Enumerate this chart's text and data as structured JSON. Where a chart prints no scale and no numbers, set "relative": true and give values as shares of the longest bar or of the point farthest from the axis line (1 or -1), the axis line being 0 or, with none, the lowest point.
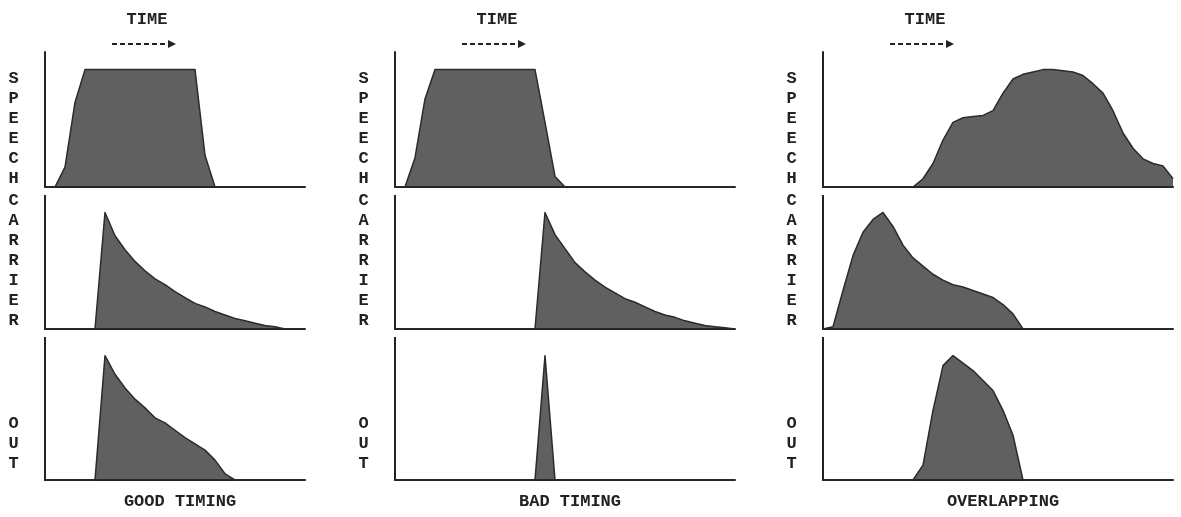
{
  "chart_data": [
    {
      "type": "area",
      "relative": true,
      "title": "TIME",
      "ylabel": "SPEECH",
      "color": "#2b2b2b",
      "categories": [
        null,
        null,
        null,
        null,
        null,
        null,
        null,
        null,
        null,
        null,
        null,
        null,
        null,
        null,
        null,
        null,
        null,
        null,
        null,
        null,
        null,
        null,
        null,
        null,
        null,
        null,
        null
      ],
      "values": [
        0,
        0,
        0.17,
        0.72,
        1,
        1,
        1,
        1,
        1,
        1,
        1,
        1,
        1,
        1,
        1,
        1,
        0.27,
        0,
        0,
        0,
        0,
        0,
        0,
        0,
        0,
        0,
        0
      ]
    },
    {
      "type": "area",
      "relative": true,
      "title": "TIME",
      "ylabel": "SPEECH",
      "color": "#2b2b2b",
      "categories": [
        null,
        null,
        null,
        null,
        null,
        null,
        null,
        null,
        null,
        null,
        null,
        null,
        null,
        null,
        null,
        null,
        null,
        null,
        null,
        null,
        null,
        null,
        null,
        null,
        null,
        null,
        null,
        null,
        null,
        null,
        null,
        null,
        null,
        null,
        null
      ],
      "values": [
        0,
        0,
        0.25,
        0.75,
        1,
        1,
        1,
        1,
        1,
        1,
        1,
        1,
        1,
        1,
        1,
        0.55,
        0.09,
        0,
        0,
        0,
        0,
        0,
        0,
        0,
        0,
        0,
        0,
        0,
        0,
        0,
        0,
        0,
        0,
        0,
        0
      ]
    },
    {
      "type": "area",
      "relative": true,
      "title": "TIME",
      "ylabel": "SPEECH",
      "color": "#2b2b2b",
      "categories": [
        null,
        null,
        null,
        null,
        null,
        null,
        null,
        null,
        null,
        null,
        null,
        null,
        null,
        null,
        null,
        null,
        null,
        null,
        null,
        null,
        null,
        null,
        null,
        null,
        null,
        null,
        null,
        null,
        null,
        null,
        null,
        null,
        null,
        null,
        null,
        null
      ],
      "values": [
        0,
        0,
        0,
        0,
        0,
        0,
        0,
        0,
        0,
        0,
        0.07,
        0.2,
        0.4,
        0.55,
        0.59,
        0.6,
        0.61,
        0.65,
        0.8,
        0.92,
        0.96,
        0.98,
        1,
        1,
        0.99,
        0.98,
        0.95,
        0.88,
        0.8,
        0.65,
        0.46,
        0.33,
        0.24,
        0.2,
        0.18,
        0.07
      ]
    },
    {
      "type": "area",
      "relative": true,
      "ylabel": "CARRIER",
      "color": "#2b2b2b",
      "categories": [
        null,
        null,
        null,
        null,
        null,
        null,
        null,
        null,
        null,
        null,
        null,
        null,
        null,
        null,
        null,
        null,
        null,
        null,
        null,
        null,
        null,
        null,
        null,
        null,
        null,
        null,
        null
      ],
      "values": [
        0,
        0,
        0,
        0,
        0,
        0,
        1,
        0.8,
        0.68,
        0.58,
        0.5,
        0.43,
        0.38,
        0.32,
        0.27,
        0.22,
        0.19,
        0.15,
        0.12,
        0.09,
        0.07,
        0.05,
        0.03,
        0.02,
        0,
        0,
        0
      ]
    },
    {
      "type": "area",
      "relative": true,
      "ylabel": "CARRIER",
      "color": "#2b2b2b",
      "categories": [
        null,
        null,
        null,
        null,
        null,
        null,
        null,
        null,
        null,
        null,
        null,
        null,
        null,
        null,
        null,
        null,
        null,
        null,
        null,
        null,
        null,
        null,
        null,
        null,
        null,
        null,
        null,
        null,
        null,
        null,
        null,
        null,
        null,
        null,
        null
      ],
      "values": [
        0,
        0,
        0,
        0,
        0,
        0,
        0,
        0,
        0,
        0,
        0,
        0,
        0,
        0,
        0,
        1,
        0.81,
        0.69,
        0.57,
        0.49,
        0.42,
        0.36,
        0.31,
        0.26,
        0.23,
        0.19,
        0.15,
        0.12,
        0.1,
        0.07,
        0.05,
        0.03,
        0.02,
        0.01,
        0
      ]
    },
    {
      "type": "area",
      "relative": true,
      "ylabel": "CARRIER",
      "color": "#2b2b2b",
      "categories": [
        null,
        null,
        null,
        null,
        null,
        null,
        null,
        null,
        null,
        null,
        null,
        null,
        null,
        null,
        null,
        null,
        null,
        null,
        null,
        null,
        null,
        null,
        null,
        null,
        null,
        null,
        null,
        null,
        null,
        null,
        null,
        null,
        null,
        null,
        null,
        null
      ],
      "values": [
        0,
        0.02,
        0.33,
        0.63,
        0.83,
        0.94,
        1,
        0.88,
        0.72,
        0.61,
        0.54,
        0.47,
        0.42,
        0.38,
        0.36,
        0.33,
        0.3,
        0.27,
        0.21,
        0.13,
        0,
        0,
        0,
        0,
        0,
        0,
        0,
        0,
        0,
        0,
        0,
        0,
        0,
        0,
        0,
        0
      ]
    },
    {
      "type": "area",
      "relative": true,
      "ylabel": "OUT",
      "xlabel": "GOOD TIMING",
      "color": "#2b2b2b",
      "categories": [
        null,
        null,
        null,
        null,
        null,
        null,
        null,
        null,
        null,
        null,
        null,
        null,
        null,
        null,
        null,
        null,
        null,
        null,
        null,
        null,
        null,
        null,
        null,
        null,
        null,
        null,
        null
      ],
      "values": [
        0,
        0,
        0,
        0,
        0,
        0,
        1,
        0.85,
        0.74,
        0.65,
        0.58,
        0.5,
        0.46,
        0.4,
        0.34,
        0.29,
        0.24,
        0.16,
        0.05,
        0,
        0,
        0,
        0,
        0,
        0,
        0,
        0
      ]
    },
    {
      "type": "area",
      "relative": true,
      "ylabel": "OUT",
      "xlabel": "BAD TIMING",
      "color": "#2b2b2b",
      "categories": [
        null,
        null,
        null,
        null,
        null,
        null,
        null,
        null,
        null,
        null,
        null,
        null,
        null,
        null,
        null,
        null,
        null,
        null,
        null,
        null,
        null,
        null,
        null,
        null,
        null,
        null,
        null,
        null,
        null,
        null,
        null,
        null,
        null,
        null,
        null
      ],
      "values": [
        0,
        0,
        0,
        0,
        0,
        0,
        0,
        0,
        0,
        0,
        0,
        0,
        0,
        0,
        0,
        1,
        0,
        0,
        0,
        0,
        0,
        0,
        0,
        0,
        0,
        0,
        0,
        0,
        0,
        0,
        0,
        0,
        0,
        0,
        0
      ]
    },
    {
      "type": "area",
      "relative": true,
      "ylabel": "OUT",
      "xlabel": "OVERLAPPING",
      "color": "#2b2b2b",
      "categories": [
        null,
        null,
        null,
        null,
        null,
        null,
        null,
        null,
        null,
        null,
        null,
        null,
        null,
        null,
        null,
        null,
        null,
        null,
        null,
        null,
        null,
        null,
        null,
        null,
        null,
        null,
        null,
        null,
        null,
        null,
        null,
        null,
        null,
        null,
        null,
        null
      ],
      "values": [
        0,
        0,
        0,
        0,
        0,
        0,
        0,
        0,
        0,
        0,
        0.12,
        0.56,
        0.92,
        1,
        0.94,
        0.88,
        0.8,
        0.72,
        0.56,
        0.36,
        0,
        0,
        0,
        0,
        0,
        0,
        0,
        0,
        0,
        0,
        0,
        0,
        0,
        0,
        0,
        0
      ]
    }
  ]
}
